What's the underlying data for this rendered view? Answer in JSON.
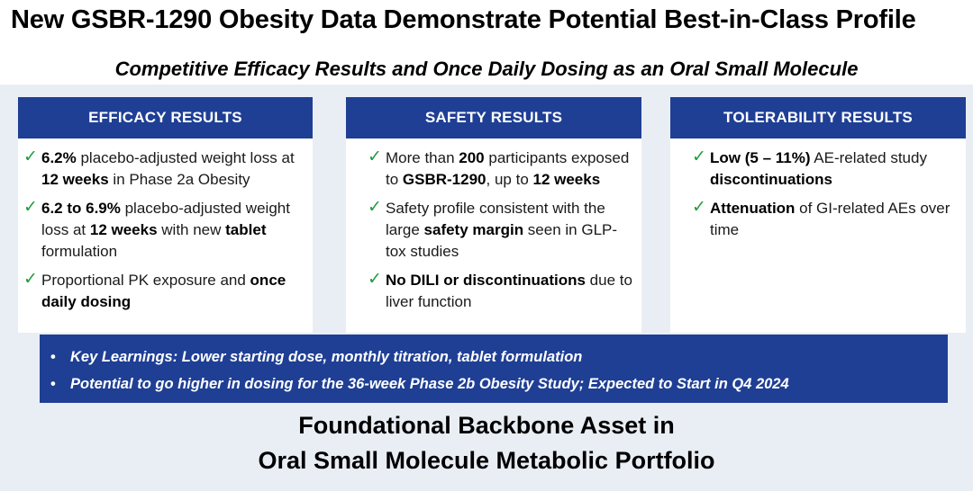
{
  "title": "New GSBR-1290 Obesity Data Demonstrate Potential Best-in-Class Profile",
  "subtitle": "Competitive Efficacy Results and Once Daily Dosing as an Oral Small Molecule",
  "check_glyph": "✓",
  "colors": {
    "header_blue": "#1f3f94",
    "check_green": "#1f9d3b",
    "panel_bg": "#e9eef5"
  },
  "efficacy": {
    "header": "EFFICACY RESULTS",
    "b1": {
      "bold1": "6.2%",
      "t1": " placebo-adjusted weight loss at ",
      "bold2": "12 weeks",
      "t2": " in Phase 2a Obesity"
    },
    "b2": {
      "bold1": "6.2 to 6.9%",
      "t1": " placebo-adjusted weight loss at ",
      "bold2": "12 weeks",
      "t2": " with new ",
      "bold3": "tablet",
      "t3": " formulation"
    },
    "b3": {
      "t1": "Proportional PK exposure and ",
      "bold1": "once daily dosing"
    }
  },
  "safety": {
    "header": "SAFETY RESULTS",
    "b1": {
      "t1": "More than ",
      "bold1": "200",
      "t2": " participants exposed to ",
      "bold2": "GSBR-1290",
      "t3": ", up to ",
      "bold3": "12 weeks"
    },
    "b2": {
      "t1": "Safety profile consistent with the large ",
      "bold1": "safety margin",
      "t2": " seen in GLP-tox studies"
    },
    "b3": {
      "bold1": "No DILI or discontinuations",
      "t1": " due to liver function"
    }
  },
  "tolerability": {
    "header": "TOLERABILITY RESULTS",
    "b1": {
      "bold1": "Low",
      "t1": " ",
      "bold2": "(5 – 11%)",
      "t2": " AE-related study ",
      "bold3": "discontinuations"
    },
    "b2": {
      "bold1": "Attenuation",
      "t1": " of GI-related AEs over time"
    }
  },
  "learnings": {
    "bullet_glyph": "•",
    "items": [
      "Key Learnings: Lower starting dose, monthly titration, tablet formulation",
      "Potential to go higher in dosing for the 36-week Phase 2b Obesity Study; Expected to Start in Q4 2024"
    ]
  },
  "footer": {
    "line1": "Foundational Backbone Asset in",
    "line2": "Oral Small Molecule Metabolic Portfolio"
  }
}
